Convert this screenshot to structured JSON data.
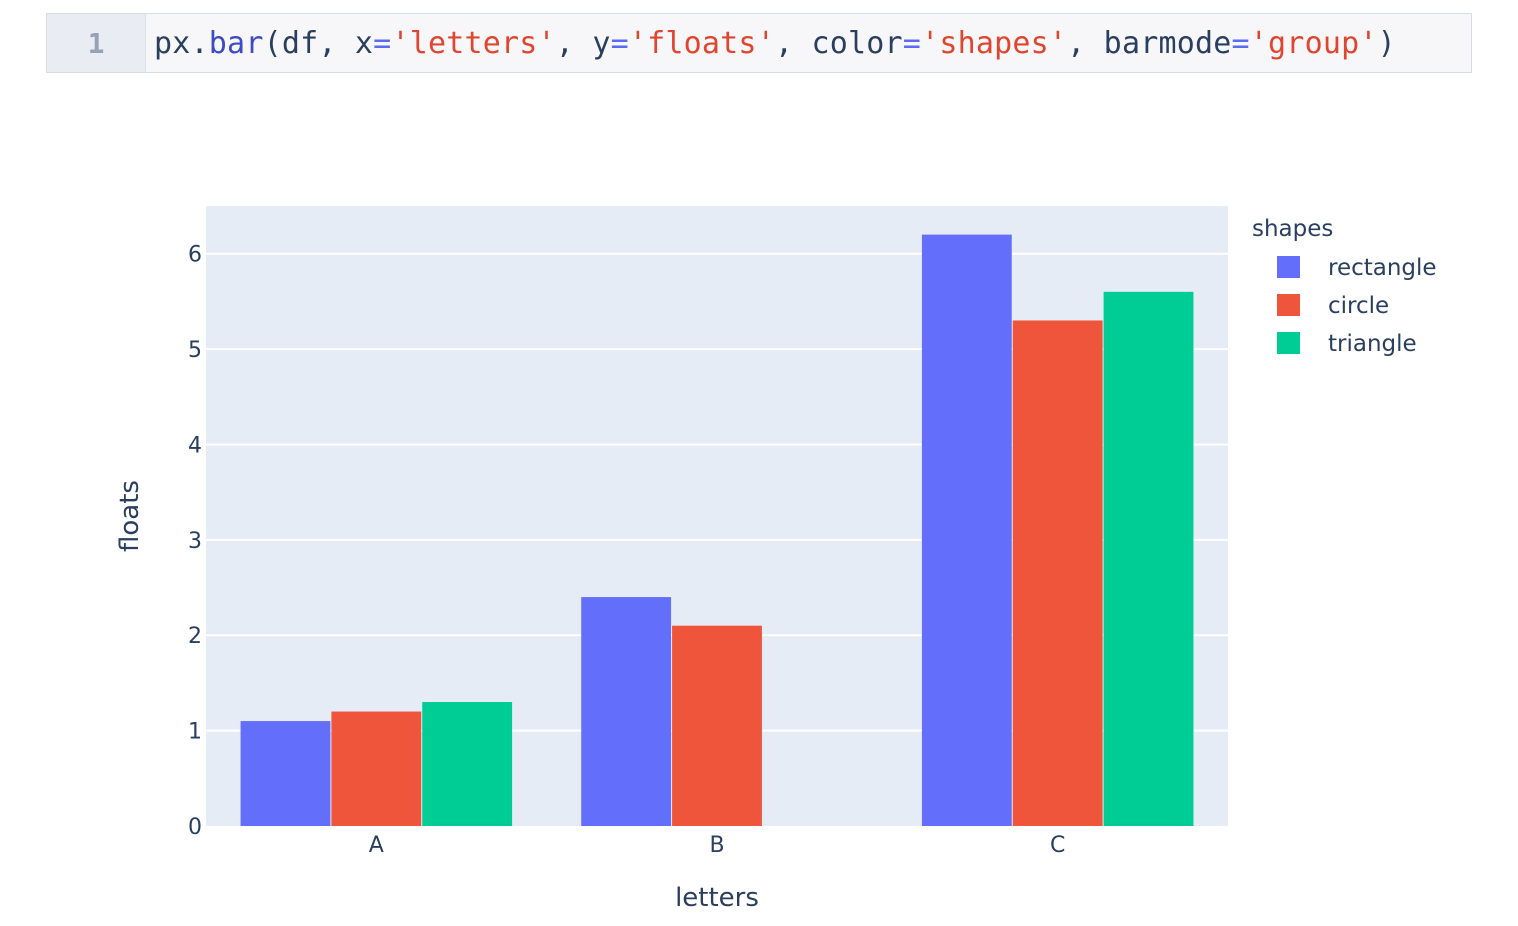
{
  "code": {
    "line_number": "1",
    "tokens": [
      {
        "t": "px.",
        "c": "plain"
      },
      {
        "t": "bar",
        "c": "fn"
      },
      {
        "t": "(df, x",
        "c": "plain"
      },
      {
        "t": "=",
        "c": "op"
      },
      {
        "t": "'letters'",
        "c": "str"
      },
      {
        "t": ", y",
        "c": "plain"
      },
      {
        "t": "=",
        "c": "op"
      },
      {
        "t": "'floats'",
        "c": "str"
      },
      {
        "t": ", color",
        "c": "plain"
      },
      {
        "t": "=",
        "c": "op"
      },
      {
        "t": "'shapes'",
        "c": "str"
      },
      {
        "t": ", barmode",
        "c": "plain"
      },
      {
        "t": "=",
        "c": "op"
      },
      {
        "t": "'group'",
        "c": "str"
      },
      {
        "t": ")",
        "c": "plain"
      }
    ]
  },
  "chart_data": {
    "type": "bar",
    "barmode": "group",
    "xlabel": "letters",
    "ylabel": "floats",
    "categories": [
      "A",
      "B",
      "C"
    ],
    "ylim": [
      0,
      6.5
    ],
    "yticks": [
      0,
      1,
      2,
      3,
      4,
      5,
      6
    ],
    "legend_title": "shapes",
    "legend_position": "top-right",
    "grid": true,
    "plot_background": "#e5ecf6",
    "series": [
      {
        "name": "rectangle",
        "color": "#636efa",
        "values": [
          1.1,
          2.4,
          6.2
        ]
      },
      {
        "name": "circle",
        "color": "#ef553b",
        "values": [
          1.2,
          2.1,
          5.3
        ]
      },
      {
        "name": "triangle",
        "color": "#00cc96",
        "values": [
          1.3,
          null,
          5.6
        ]
      }
    ]
  }
}
